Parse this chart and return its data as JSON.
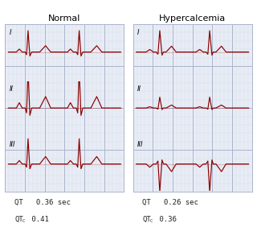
{
  "title_left": "Normal",
  "title_right": "Hypercalcemia",
  "normal_qt_line1": "QT   0.36 sec",
  "normal_qt_line2_pre": "QT",
  "normal_qt_line2_sub": "C",
  "normal_qt_line2_val": " 0.41",
  "hyper_qt_line1": "QT   0.26 sec",
  "hyper_qt_line2_pre": "QT",
  "hyper_qt_line2_sub": "C",
  "hyper_qt_line2_val": " 0.36",
  "ecg_color": "#8B0000",
  "grid_major_color": "#aab4cc",
  "grid_minor_color": "#d4d9e8",
  "panel_bg": "#e8ecf5",
  "leads": [
    "I",
    "II",
    "III"
  ],
  "figsize": [
    3.2,
    2.98
  ],
  "dpi": 100
}
